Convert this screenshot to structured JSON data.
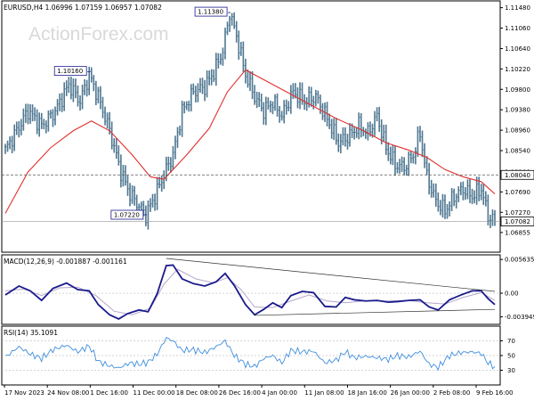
{
  "watermark": "ActionForex.com",
  "colors": {
    "bar": "#4f7791",
    "ma": "#e0302e",
    "macd": "#1a1a8c",
    "signal": "#b5a7c9",
    "rsi": "#3f8fdc",
    "grid": "#999999",
    "text": "#000000"
  },
  "chart_data": [
    {
      "type": "candlestick",
      "symbol": "EURUSD",
      "timeframe": "H4",
      "ohlc_header": "1.06996 1.07159 1.06957 1.07082",
      "title": "EURUSD,H4  1.06996 1.07159 1.06957 1.07082",
      "ylim": [
        1.0645,
        1.1162
      ],
      "yticks": [
        1.06855,
        1.0727,
        1.0769,
        1.081,
        1.0854,
        1.0896,
        1.0938,
        1.098,
        1.1022,
        1.1064,
        1.1106,
        1.1148
      ],
      "ytick_labels": [
        "1.06855",
        "1.07270",
        "1.07690",
        "1.08100",
        "1.08540",
        "1.08960",
        "1.09380",
        "1.09800",
        "1.10220",
        "1.10640",
        "1.11060",
        "1.11480"
      ],
      "x_labels": [
        "17 Nov 2023",
        "24 Nov 08:00",
        "1 Dec 16:00",
        "11 Dec 00:00",
        "18 Dec 08:00",
        "26 Dec 16:00",
        "4 Jan 00:00",
        "11 Jan 08:00",
        "18 Jan 16:00",
        "26 Jan 00:00",
        "2 Feb 08:00",
        "9 Feb 16:00"
      ],
      "close_path": [
        [
          0,
          1.0855
        ],
        [
          5,
          1.0895
        ],
        [
          10,
          1.0935
        ],
        [
          16,
          1.0905
        ],
        [
          22,
          1.0935
        ],
        [
          28,
          1.099
        ],
        [
          33,
          1.0955
        ],
        [
          37,
          1.101
        ],
        [
          41,
          1.0965
        ],
        [
          46,
          1.0895
        ],
        [
          51,
          1.081
        ],
        [
          55,
          1.0765
        ],
        [
          59,
          1.074
        ],
        [
          62,
          1.0722
        ],
        [
          66,
          1.076
        ],
        [
          70,
          1.0805
        ],
        [
          74,
          1.0845
        ],
        [
          78,
          1.0935
        ],
        [
          83,
          1.0975
        ],
        [
          88,
          1.0985
        ],
        [
          92,
          1.1015
        ],
        [
          96,
          1.106
        ],
        [
          99,
          1.1138
        ],
        [
          102,
          1.109
        ],
        [
          106,
          1.101
        ],
        [
          110,
          1.0965
        ],
        [
          114,
          1.0935
        ],
        [
          118,
          1.0955
        ],
        [
          122,
          1.0925
        ],
        [
          127,
          1.0975
        ],
        [
          132,
          1.0955
        ],
        [
          137,
          1.0965
        ],
        [
          142,
          1.092
        ],
        [
          147,
          1.087
        ],
        [
          152,
          1.0885
        ],
        [
          156,
          1.0905
        ],
        [
          160,
          1.089
        ],
        [
          164,
          1.0925
        ],
        [
          168,
          1.086
        ],
        [
          172,
          1.0825
        ],
        [
          176,
          1.082
        ],
        [
          180,
          1.0845
        ],
        [
          183,
          1.089
        ],
        [
          186,
          1.08
        ],
        [
          190,
          1.075
        ],
        [
          194,
          1.073
        ],
        [
          198,
          1.076
        ],
        [
          202,
          1.0775
        ],
        [
          206,
          1.076
        ],
        [
          210,
          1.0775
        ],
        [
          213,
          1.072
        ],
        [
          216,
          1.07082
        ]
      ],
      "ma_path": [
        [
          0,
          1.0725
        ],
        [
          10,
          1.081
        ],
        [
          20,
          1.086
        ],
        [
          30,
          1.0895
        ],
        [
          38,
          1.0915
        ],
        [
          46,
          1.0895
        ],
        [
          56,
          1.0845
        ],
        [
          64,
          1.08
        ],
        [
          70,
          1.0795
        ],
        [
          80,
          1.0845
        ],
        [
          90,
          1.09
        ],
        [
          98,
          1.0975
        ],
        [
          106,
          1.102
        ],
        [
          114,
          1.1
        ],
        [
          124,
          1.0975
        ],
        [
          134,
          1.095
        ],
        [
          146,
          1.092
        ],
        [
          158,
          1.0895
        ],
        [
          168,
          1.087
        ],
        [
          178,
          1.0855
        ],
        [
          186,
          1.084
        ],
        [
          194,
          1.0815
        ],
        [
          202,
          1.08
        ],
        [
          210,
          1.079
        ],
        [
          216,
          1.0765
        ]
      ],
      "annotations": [
        {
          "text": "1.10160",
          "at": [
            37,
            1.1016
          ]
        },
        {
          "text": "1.11380",
          "at": [
            99,
            1.1138
          ]
        },
        {
          "text": "1.07220",
          "at": [
            62,
            1.0722
          ]
        }
      ],
      "reference_line": {
        "value": 1.0804,
        "label": "1.08040",
        "style": "dashed"
      },
      "last_price": {
        "value": 1.07082,
        "label": "1.07082"
      }
    },
    {
      "type": "line",
      "title": "MACD(12,26,9) -0.001887 -0.001161",
      "ylim": [
        -0.0052,
        0.0064
      ],
      "yticks": [
        0.005635,
        0.0,
        -0.003949
      ],
      "ytick_labels": [
        "0.005635",
        "0.00",
        "-0.003949"
      ],
      "series": [
        {
          "name": "MACD",
          "points": [
            [
              0,
              -0.0003
            ],
            [
              6,
              0.0012
            ],
            [
              11,
              0.0004
            ],
            [
              16,
              -0.0012
            ],
            [
              21,
              0.0008
            ],
            [
              27,
              0.0017
            ],
            [
              32,
              0.0006
            ],
            [
              37,
              0.0004
            ],
            [
              41,
              -0.0019
            ],
            [
              46,
              -0.0036
            ],
            [
              50,
              -0.0043
            ],
            [
              54,
              -0.0034
            ],
            [
              59,
              -0.0028
            ],
            [
              63,
              -0.0031
            ],
            [
              67,
              -0.0001
            ],
            [
              71,
              0.0046
            ],
            [
              74,
              0.0047
            ],
            [
              78,
              0.0024
            ],
            [
              83,
              0.0016
            ],
            [
              88,
              0.0012
            ],
            [
              93,
              0.0019
            ],
            [
              97,
              0.0033
            ],
            [
              101,
              0.0013
            ],
            [
              106,
              -0.0019
            ],
            [
              110,
              -0.0036
            ],
            [
              114,
              -0.0027
            ],
            [
              118,
              -0.0016
            ],
            [
              122,
              -0.0024
            ],
            [
              126,
              -0.0004
            ],
            [
              131,
              0.0003
            ],
            [
              136,
              0.0001
            ],
            [
              141,
              -0.0022
            ],
            [
              146,
              -0.0023
            ],
            [
              150,
              -0.0007
            ],
            [
              154,
              -0.0011
            ],
            [
              159,
              -0.0013
            ],
            [
              164,
              -0.0012
            ],
            [
              169,
              -0.0015
            ],
            [
              173,
              -0.0014
            ],
            [
              178,
              -0.0012
            ],
            [
              183,
              -0.0011
            ],
            [
              187,
              -0.0023
            ],
            [
              191,
              -0.0028
            ],
            [
              196,
              -0.0011
            ],
            [
              201,
              -0.0003
            ],
            [
              206,
              0.0004
            ],
            [
              210,
              0.0004
            ],
            [
              213,
              -0.0009
            ],
            [
              216,
              -0.0019
            ]
          ]
        },
        {
          "name": "Signal",
          "points": [
            [
              0,
              0.0004
            ],
            [
              8,
              0.0007
            ],
            [
              16,
              -0.0004
            ],
            [
              24,
              0.0009
            ],
            [
              32,
              0.001
            ],
            [
              40,
              -0.0004
            ],
            [
              48,
              -0.003
            ],
            [
              56,
              -0.0036
            ],
            [
              64,
              -0.0025
            ],
            [
              70,
              0.0015
            ],
            [
              76,
              0.004
            ],
            [
              84,
              0.0024
            ],
            [
              92,
              0.0017
            ],
            [
              98,
              0.0026
            ],
            [
              104,
              0.0006
            ],
            [
              110,
              -0.0023
            ],
            [
              118,
              -0.0024
            ],
            [
              126,
              -0.0013
            ],
            [
              134,
              -0.0003
            ],
            [
              142,
              -0.0013
            ],
            [
              150,
              -0.0016
            ],
            [
              158,
              -0.0013
            ],
            [
              168,
              -0.0013
            ],
            [
              178,
              -0.0012
            ],
            [
              186,
              -0.0016
            ],
            [
              194,
              -0.0018
            ],
            [
              202,
              -0.0007
            ],
            [
              210,
              0.0001
            ],
            [
              216,
              -0.0012
            ]
          ]
        }
      ],
      "trendlines": [
        {
          "from": [
            71,
            0.0058
          ],
          "to": [
            216,
            0.0003
          ]
        },
        {
          "from": [
            110,
            -0.0037
          ],
          "to": [
            216,
            -0.0027
          ]
        }
      ]
    },
    {
      "type": "line",
      "title": "RSI(14) 35.1091",
      "ylim": [
        10,
        90
      ],
      "yticks": [
        70,
        50,
        30
      ],
      "ytick_labels": [
        "70",
        "50",
        "30"
      ],
      "series": [
        {
          "name": "RSI",
          "points": [
            [
              0,
              48
            ],
            [
              6,
              62
            ],
            [
              11,
              52
            ],
            [
              16,
              46
            ],
            [
              21,
              58
            ],
            [
              27,
              64
            ],
            [
              32,
              55
            ],
            [
              37,
              63
            ],
            [
              41,
              42
            ],
            [
              46,
              36
            ],
            [
              50,
              33
            ],
            [
              55,
              40
            ],
            [
              59,
              38
            ],
            [
              63,
              41
            ],
            [
              67,
              52
            ],
            [
              71,
              74
            ],
            [
              74,
              70
            ],
            [
              78,
              57
            ],
            [
              83,
              58
            ],
            [
              88,
              54
            ],
            [
              93,
              62
            ],
            [
              97,
              70
            ],
            [
              101,
              50
            ],
            [
              106,
              38
            ],
            [
              110,
              35
            ],
            [
              114,
              46
            ],
            [
              118,
              50
            ],
            [
              122,
              40
            ],
            [
              126,
              57
            ],
            [
              131,
              55
            ],
            [
              136,
              56
            ],
            [
              141,
              40
            ],
            [
              146,
              44
            ],
            [
              150,
              55
            ],
            [
              154,
              47
            ],
            [
              159,
              49
            ],
            [
              164,
              47
            ],
            [
              169,
              45
            ],
            [
              173,
              50
            ],
            [
              178,
              48
            ],
            [
              183,
              56
            ],
            [
              187,
              38
            ],
            [
              191,
              34
            ],
            [
              196,
              50
            ],
            [
              201,
              54
            ],
            [
              206,
              55
            ],
            [
              210,
              53
            ],
            [
              213,
              40
            ],
            [
              216,
              35
            ]
          ]
        }
      ]
    }
  ]
}
